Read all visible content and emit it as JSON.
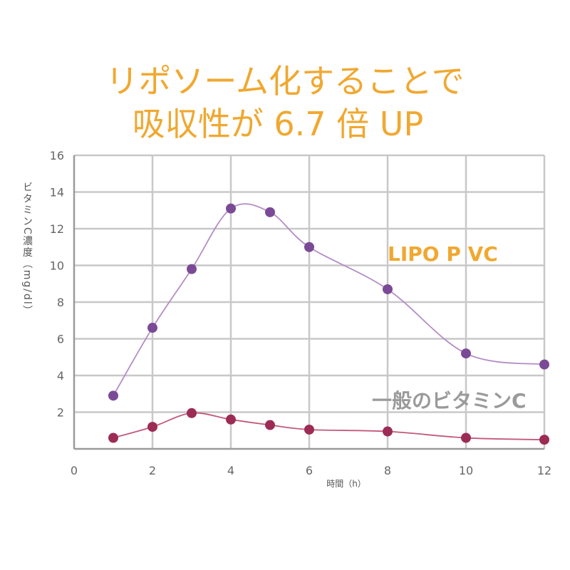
{
  "title_line1": "リポソーム化することで",
  "title_line2": "吸収性が 6.7 倍 UP",
  "chart_data": {
    "type": "line",
    "title": "リポソーム化することで 吸収性が 6.7 倍 UP",
    "xlabel": "時間（h）",
    "ylabel": "ビタミンC濃度（mg/dl）",
    "xlim": [
      0,
      12
    ],
    "ylim": [
      0,
      16
    ],
    "x_ticks": [
      0,
      2,
      4,
      6,
      8,
      10,
      12
    ],
    "y_ticks": [
      2,
      4,
      6,
      8,
      10,
      12,
      14,
      16
    ],
    "grid": true,
    "series": [
      {
        "name": "LIPO P VC",
        "color": "#7b4a96",
        "line_color": "#b48cc6",
        "label_color": "#f0a830",
        "x": [
          1,
          2,
          3,
          4,
          5,
          6,
          8,
          10,
          12
        ],
        "values": [
          2.9,
          6.6,
          9.8,
          13.1,
          12.9,
          11.0,
          8.7,
          5.2,
          4.6
        ]
      },
      {
        "name": "一般のビタミンC",
        "color": "#9c2c55",
        "line_color": "#c25a7a",
        "label_color": "#9a9a9a",
        "x": [
          1,
          2,
          3,
          4,
          5,
          6,
          8,
          10,
          12
        ],
        "values": [
          0.6,
          1.2,
          1.95,
          1.6,
          1.3,
          1.05,
          0.95,
          0.6,
          0.5
        ]
      }
    ]
  }
}
